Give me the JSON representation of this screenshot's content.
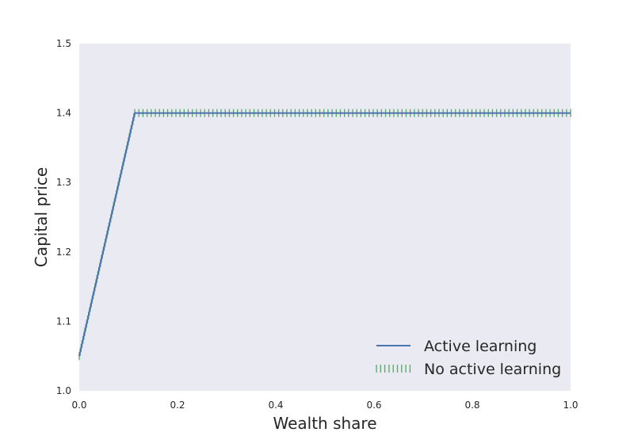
{
  "chart_data": {
    "type": "line",
    "xlabel": "Wealth share",
    "ylabel": "Capital price",
    "xlim": [
      0.0,
      1.0
    ],
    "ylim": [
      1.0,
      1.5
    ],
    "xticks": [
      "0.0",
      "0.2",
      "0.4",
      "0.6",
      "0.8",
      "1.0"
    ],
    "yticks": [
      "1.0",
      "1.1",
      "1.2",
      "1.3",
      "1.4",
      "1.5"
    ],
    "grid": false,
    "legend_position": "bottom-right",
    "colors": {
      "plot_background": "#eaeaf2",
      "active_learning": "#4c72b0",
      "no_active_learning": "#55a868"
    },
    "series": [
      {
        "name": "Active learning",
        "style": "solid",
        "x": [
          0.0,
          0.113,
          1.0
        ],
        "y": [
          1.05,
          1.4,
          1.4
        ]
      },
      {
        "name": "No active learning",
        "style": "vertical-tick-marker",
        "x": [
          0.0,
          0.113,
          1.0
        ],
        "y": [
          1.05,
          1.4,
          1.4
        ]
      }
    ]
  }
}
